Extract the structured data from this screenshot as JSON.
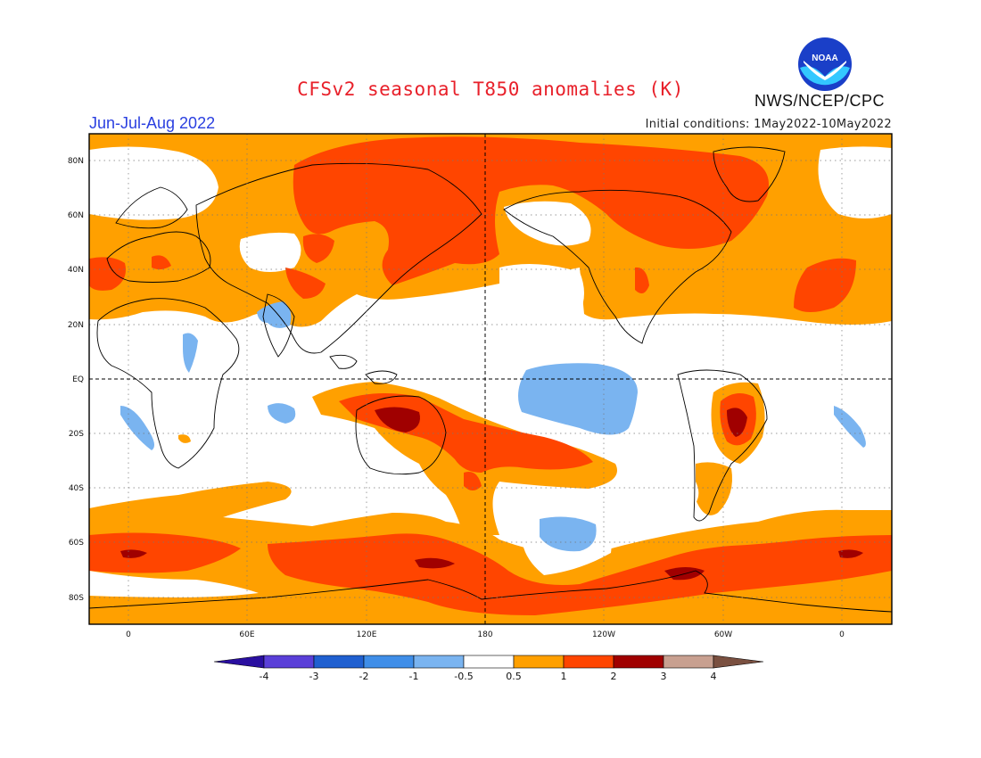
{
  "header": {
    "title": "CFSv2 seasonal T850 anomalies (K)",
    "agency": "NWS/NCEP/CPC",
    "season": "Jun-Jul-Aug 2022",
    "initial_conditions": "Initial conditions: 1May2022-10May2022",
    "logo_text": "NOAA"
  },
  "axes": {
    "lat_labels": [
      "80N",
      "60N",
      "40N",
      "20N",
      "EQ",
      "20S",
      "40S",
      "60S",
      "80S"
    ],
    "lon_labels": [
      "0",
      "60E",
      "120E",
      "180",
      "120W",
      "60W",
      "0"
    ]
  },
  "colorbar": {
    "labels": [
      "-4",
      "-3",
      "-2",
      "-1",
      "-0.5",
      "0.5",
      "1",
      "2",
      "3",
      "4"
    ],
    "colors": [
      "#2a0fa0",
      "#5a3fd8",
      "#2060d0",
      "#3f8ee8",
      "#7ab4f0",
      "#ffffff",
      "#ffa000",
      "#ff4500",
      "#a00000",
      "#c8a090",
      "#7a5040"
    ]
  }
}
